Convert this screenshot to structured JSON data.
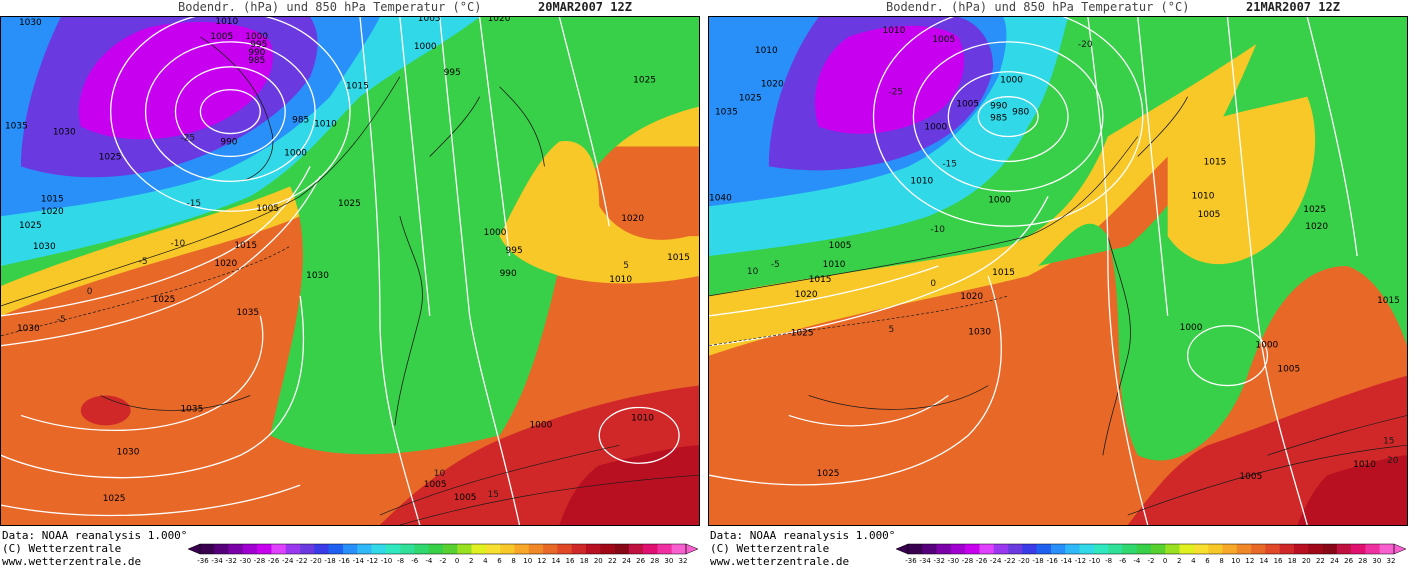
{
  "colors": {
    "scale": [
      "#3a0050",
      "#55007a",
      "#7a00a8",
      "#a000d0",
      "#c800f0",
      "#e040ff",
      "#9a38f0",
      "#6a3ae0",
      "#3a3ae8",
      "#2060f0",
      "#2890f8",
      "#30b8f8",
      "#30d8e8",
      "#30e8c0",
      "#30e098",
      "#30d870",
      "#38d048",
      "#58d030",
      "#98e020",
      "#e0f020",
      "#f8e030",
      "#f8c828",
      "#f8a828",
      "#f08828",
      "#e86828",
      "#e04828",
      "#d02828",
      "#b81020",
      "#a00818",
      "#880818",
      "#c01040",
      "#e01070",
      "#f030a0",
      "#f860d0"
    ],
    "contour_white": "#ffffff",
    "contour_black": "#1a1a1a"
  },
  "panels": [
    {
      "title": "Bodendr. (hPa) und 850 hPa Temperatur (°C)",
      "date": "20MAR2007 12Z",
      "credit_data": "Data: NOAA reanalysis 1.000°",
      "credit_copyright": "(C) Wetterzentrale",
      "credit_url": "www.wetterzentrale.de",
      "pressure_labels": [
        "1030",
        "1010",
        "1005",
        "1000",
        "995",
        "990",
        "985",
        "1005",
        "1020",
        "1035",
        "1030",
        "1025",
        "1015",
        "1020",
        "1025",
        "1030",
        "990",
        "985",
        "1010",
        "1000",
        "1015",
        "1025",
        "1000",
        "995",
        "1025",
        "1005",
        "1015",
        "1020",
        "1025",
        "1030",
        "1035",
        "1030",
        "1035",
        "1030",
        "1025",
        "1000",
        "995",
        "990",
        "1020",
        "1015",
        "1010",
        "1010",
        "1000",
        "1005",
        "1005"
      ],
      "temp_labels": [
        "-25",
        "-15",
        "-10",
        "-5",
        "0",
        "-5",
        "10",
        "15",
        "5"
      ]
    },
    {
      "title": "Bodendr. (hPa) und 850 hPa Temperatur (°C)",
      "date": "21MAR2007 12Z",
      "credit_data": "Data: NOAA reanalysis 1.000°",
      "credit_copyright": "(C) Wetterzentrale",
      "credit_url": "www.wetterzentrale.de",
      "pressure_labels": [
        "1010",
        "1005",
        "1010",
        "1020",
        "1025",
        "1035",
        "1040",
        "1000",
        "1005",
        "990",
        "985",
        "980",
        "1000",
        "1010",
        "1000",
        "1005",
        "1010",
        "1015",
        "1020",
        "1025",
        "1030",
        "1015",
        "1015",
        "1010",
        "1005",
        "1025",
        "1020",
        "1015",
        "1000",
        "1000",
        "1005",
        "1010",
        "1005",
        "1025",
        "1020"
      ],
      "temp_labels": [
        "-25",
        "-20",
        "-15",
        "-10",
        "-5",
        "0",
        "5",
        "10",
        "15",
        "20"
      ]
    }
  ],
  "legend": {
    "ticks": [
      "-36",
      "-34",
      "-32",
      "-30",
      "-28",
      "-26",
      "-24",
      "-22",
      "-20",
      "-18",
      "-16",
      "-14",
      "-12",
      "-10",
      "-8",
      "-6",
      "-4",
      "-2",
      "0",
      "2",
      "4",
      "6",
      "8",
      "10",
      "12",
      "14",
      "16",
      "18",
      "20",
      "22",
      "24",
      "26",
      "28",
      "30",
      "32"
    ]
  }
}
